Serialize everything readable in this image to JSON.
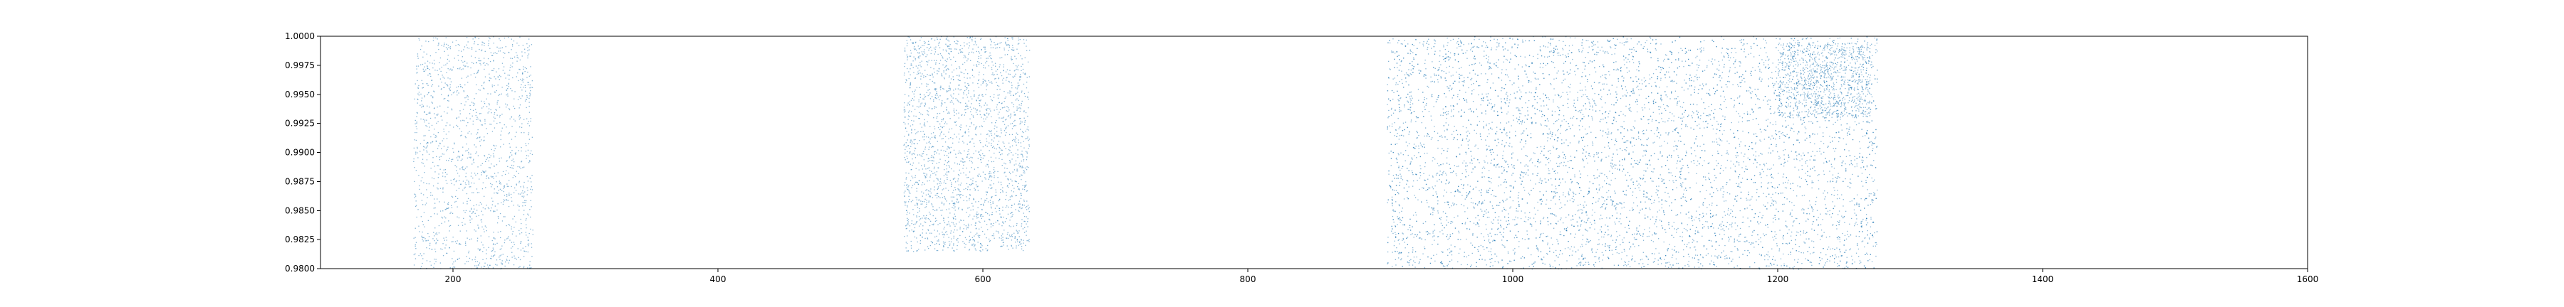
{
  "chart_data": {
    "type": "scatter",
    "title": "",
    "xlabel": "",
    "ylabel": "",
    "xlim": [
      100,
      1600
    ],
    "ylim": [
      0.98,
      1.0
    ],
    "grid": false,
    "legend": "none",
    "marker_color": "#1f77b4",
    "x_ticks": [
      200,
      400,
      600,
      800,
      1000,
      1200,
      1400,
      1600
    ],
    "x_tick_labels": [
      "200",
      "400",
      "600",
      "800",
      "1000",
      "1200",
      "1400",
      "1600"
    ],
    "y_ticks": [
      0.98,
      0.9825,
      0.985,
      0.9875,
      0.99,
      0.9925,
      0.995,
      0.9975,
      1.0
    ],
    "y_tick_labels": [
      "0.9800",
      "0.9825",
      "0.9850",
      "0.9875",
      "0.9900",
      "0.9925",
      "0.9950",
      "0.9975",
      "1.0000"
    ],
    "clusters": [
      {
        "x_range": [
          170,
          260
        ],
        "y_range": [
          0.98,
          1.0
        ],
        "points": 1500
      },
      {
        "x_range": [
          540,
          635
        ],
        "y_range": [
          0.9815,
          1.0
        ],
        "points": 2200
      },
      {
        "x_range": [
          905,
          1275
        ],
        "y_range": [
          0.98,
          1.0
        ],
        "points": 7000
      },
      {
        "x_range": [
          1200,
          1270
        ],
        "y_range": [
          0.993,
          0.9995
        ],
        "points": 900
      }
    ]
  }
}
